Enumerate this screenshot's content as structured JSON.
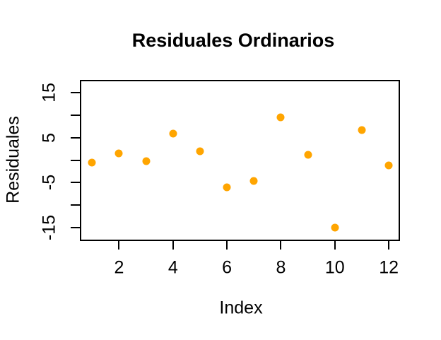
{
  "figure": {
    "background": "#FFFFFF"
  },
  "chart_data": {
    "type": "scatter",
    "title": "Residuales Ordinarios",
    "xlabel": "Index",
    "ylabel": "Residuales",
    "x": [
      1,
      2,
      3,
      4,
      5,
      6,
      7,
      8,
      9,
      10,
      11,
      12
    ],
    "y": [
      -0.6,
      1.5,
      -0.3,
      5.8,
      2.0,
      -6.0,
      -4.6,
      9.4,
      1.2,
      -15.0,
      6.6,
      -1.2
    ],
    "xlim": [
      0.56,
      12.39
    ],
    "ylim": [
      -17.7,
      17.7
    ],
    "x_ticks": [
      2,
      4,
      6,
      8,
      10,
      12
    ],
    "x_tick_labels": [
      "2",
      "4",
      "6",
      "8",
      "10",
      "12"
    ],
    "y_ticks": [
      -15,
      -10,
      -5,
      0,
      5,
      10,
      15
    ],
    "y_tick_labels": [
      "-15",
      "",
      "-5",
      "",
      "5",
      "",
      "15"
    ],
    "grid": false,
    "legend": null,
    "marker": "filled-circle",
    "point_color": "#FFA500",
    "axis_color": "#000000",
    "text_color": "#000000"
  }
}
